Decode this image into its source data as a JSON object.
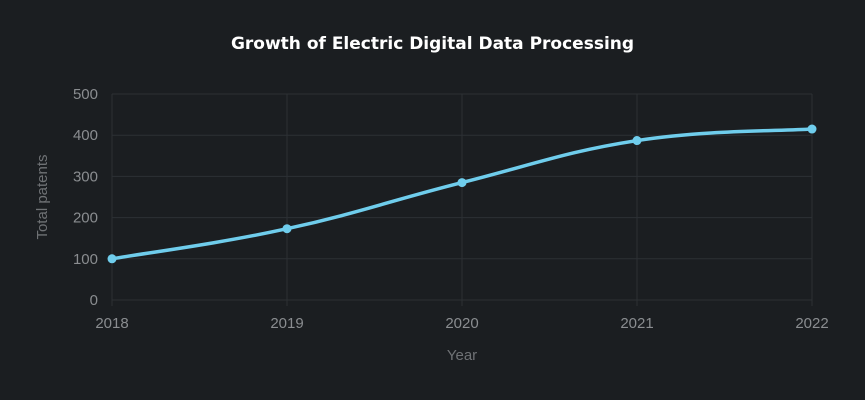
{
  "chart_data": {
    "type": "line",
    "title": "Growth of Electric Digital Data Processing",
    "xlabel": "Year",
    "ylabel": "Total patents",
    "categories": [
      "2018",
      "2019",
      "2020",
      "2021",
      "2022"
    ],
    "series": [
      {
        "values": [
          100,
          173,
          285,
          387,
          415
        ],
        "color": "#6fcdec"
      }
    ],
    "ylim": [
      0,
      500
    ],
    "yticks": [
      0,
      100,
      200,
      300,
      400,
      500
    ],
    "grid": true,
    "legend": "none",
    "colors": {
      "background": "#1b1e21",
      "grid": "#2c3034",
      "line": "#6fcdec",
      "title": "#ffffff",
      "tick_text": "#8a8d90"
    }
  }
}
